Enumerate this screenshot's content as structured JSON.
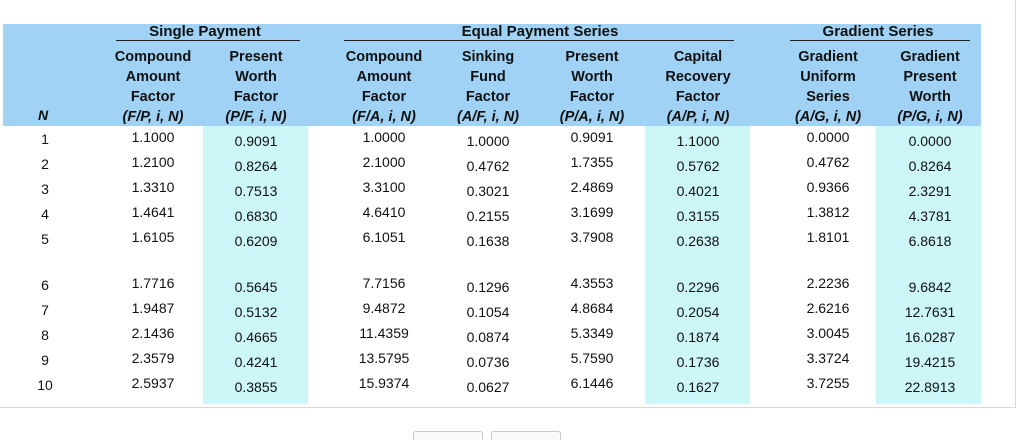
{
  "table": {
    "n_header": "N",
    "groups": [
      {
        "title": "Single Payment"
      },
      {
        "title": "Equal Payment Series"
      },
      {
        "title": "Gradient Series"
      }
    ],
    "columns": [
      {
        "l1": "Compound",
        "l2": "Amount",
        "l3": "Factor",
        "notation": "(F/P, i, N)"
      },
      {
        "l1": "Present",
        "l2": "Worth",
        "l3": "Factor",
        "notation": "(P/F, i, N)"
      },
      {
        "l1": "Compound",
        "l2": "Amount",
        "l3": "Factor",
        "notation": "(F/A, i, N)"
      },
      {
        "l1": "Sinking",
        "l2": "Fund",
        "l3": "Factor",
        "notation": "(A/F, i, N)"
      },
      {
        "l1": "Present",
        "l2": "Worth",
        "l3": "Factor",
        "notation": "(P/A, i, N)"
      },
      {
        "l1": "Capital",
        "l2": "Recovery",
        "l3": "Factor",
        "notation": "(A/P, i, N)"
      },
      {
        "l1": "Gradient",
        "l2": "Uniform",
        "l3": "Series",
        "notation": "(A/G, i, N)"
      },
      {
        "l1": "Gradient",
        "l2": "Present",
        "l3": "Worth",
        "notation": "(P/G, i, N)"
      }
    ],
    "rows": [
      {
        "n": "1",
        "v": [
          "1.1000",
          "0.9091",
          "1.0000",
          "1.0000",
          "0.9091",
          "1.1000",
          "0.0000",
          "0.0000"
        ]
      },
      {
        "n": "2",
        "v": [
          "1.2100",
          "0.8264",
          "2.1000",
          "0.4762",
          "1.7355",
          "0.5762",
          "0.4762",
          "0.8264"
        ]
      },
      {
        "n": "3",
        "v": [
          "1.3310",
          "0.7513",
          "3.3100",
          "0.3021",
          "2.4869",
          "0.4021",
          "0.9366",
          "2.3291"
        ]
      },
      {
        "n": "4",
        "v": [
          "1.4641",
          "0.6830",
          "4.6410",
          "0.2155",
          "3.1699",
          "0.3155",
          "1.3812",
          "4.3781"
        ]
      },
      {
        "n": "5",
        "v": [
          "1.6105",
          "0.6209",
          "6.1051",
          "0.1638",
          "3.7908",
          "0.2638",
          "1.8101",
          "6.8618"
        ]
      },
      {
        "n": "6",
        "v": [
          "1.7716",
          "0.5645",
          "7.7156",
          "0.1296",
          "4.3553",
          "0.2296",
          "2.2236",
          "9.6842"
        ]
      },
      {
        "n": "7",
        "v": [
          "1.9487",
          "0.5132",
          "9.4872",
          "0.1054",
          "4.8684",
          "0.2054",
          "2.6216",
          "12.7631"
        ]
      },
      {
        "n": "8",
        "v": [
          "2.1436",
          "0.4665",
          "11.4359",
          "0.0874",
          "5.3349",
          "0.1874",
          "3.0045",
          "16.0287"
        ]
      },
      {
        "n": "9",
        "v": [
          "2.3579",
          "0.4241",
          "13.5795",
          "0.0736",
          "5.7590",
          "0.1736",
          "3.3724",
          "19.4215"
        ]
      },
      {
        "n": "10",
        "v": [
          "2.5937",
          "0.3855",
          "15.9374",
          "0.0627",
          "6.1446",
          "0.1627",
          "3.7255",
          "22.8913"
        ]
      }
    ]
  }
}
